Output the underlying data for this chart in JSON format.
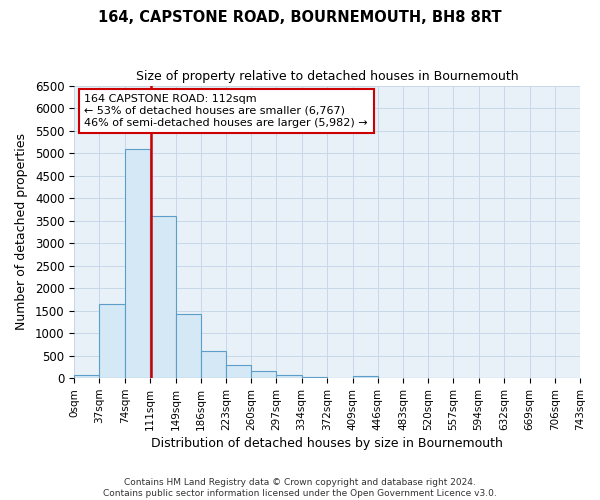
{
  "title": "164, CAPSTONE ROAD, BOURNEMOUTH, BH8 8RT",
  "subtitle": "Size of property relative to detached houses in Bournemouth",
  "xlabel": "Distribution of detached houses by size in Bournemouth",
  "ylabel": "Number of detached properties",
  "footer_lines": [
    "Contains HM Land Registry data © Crown copyright and database right 2024.",
    "Contains public sector information licensed under the Open Government Licence v3.0."
  ],
  "bin_edges": [
    0,
    37,
    74,
    111,
    149,
    186,
    223,
    260,
    297,
    334,
    372,
    409,
    446,
    483,
    520,
    557,
    594,
    632,
    669,
    706,
    743
  ],
  "bin_labels": [
    "0sqm",
    "37sqm",
    "74sqm",
    "111sqm",
    "149sqm",
    "186sqm",
    "223sqm",
    "260sqm",
    "297sqm",
    "334sqm",
    "372sqm",
    "409sqm",
    "446sqm",
    "483sqm",
    "520sqm",
    "557sqm",
    "594sqm",
    "632sqm",
    "669sqm",
    "706sqm",
    "743sqm"
  ],
  "counts": [
    75,
    1650,
    5080,
    3600,
    1420,
    610,
    300,
    150,
    75,
    30,
    10,
    50,
    0,
    0,
    0,
    0,
    0,
    0,
    0,
    0
  ],
  "bar_color": "#d4e8f5",
  "bar_edge_color": "#5a9ec9",
  "property_value": 112,
  "vline_color": "#cc0000",
  "annotation_line1": "164 CAPSTONE ROAD: 112sqm",
  "annotation_line2": "← 53% of detached houses are smaller (6,767)",
  "annotation_line3": "46% of semi-detached houses are larger (5,982) →",
  "annotation_box_color": "white",
  "annotation_box_edge_color": "#cc0000",
  "ylim": [
    0,
    6500
  ],
  "yticks": [
    0,
    500,
    1000,
    1500,
    2000,
    2500,
    3000,
    3500,
    4000,
    4500,
    5000,
    5500,
    6000,
    6500
  ],
  "bg_color": "#e8f0f8"
}
